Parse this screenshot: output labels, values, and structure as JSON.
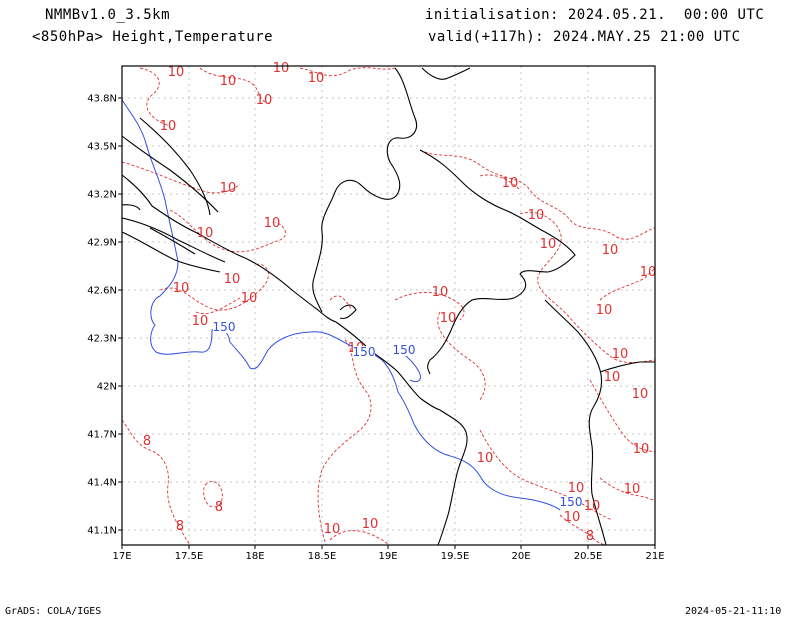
{
  "header": {
    "model": "NMMBv1.0_3.5km",
    "fields": "<850hPa> Height,Temperature",
    "init": "initialisation: 2024.05.21.  00:00 UTC",
    "valid": "valid(+117h): 2024.MAY.25 21:00 UTC"
  },
  "footer": {
    "credit": "GrADS: COLA/IGES",
    "timestamp": "2024-05-21-11:10"
  },
  "map": {
    "lat_labels": [
      "43.8N",
      "43.5N",
      "43.2N",
      "42.9N",
      "42.6N",
      "42.3N",
      "42N",
      "41.7N",
      "41.4N",
      "41.1N"
    ],
    "lon_labels": [
      "17E",
      "17.5E",
      "18E",
      "18.5E",
      "19E",
      "19.5E",
      "20E",
      "20.5E",
      "21E"
    ],
    "colors": {
      "height": "#3050e0",
      "temperature": "#e03030",
      "coast": "#000000",
      "grid": "#b0b0b0"
    },
    "temperature_labels": [
      "10",
      "10",
      "10",
      "10",
      "10",
      "10",
      "10",
      "10",
      "10",
      "10",
      "10",
      "10",
      "10",
      "10",
      "10",
      "10",
      "10",
      "10",
      "10",
      "10",
      "10",
      "10",
      "10",
      "10",
      "10",
      "10",
      "10",
      "10",
      "10",
      "8",
      "8",
      "8",
      "10",
      "10",
      "10",
      "10",
      "8"
    ],
    "height_labels": [
      "150",
      "150",
      "150",
      "150"
    ]
  }
}
